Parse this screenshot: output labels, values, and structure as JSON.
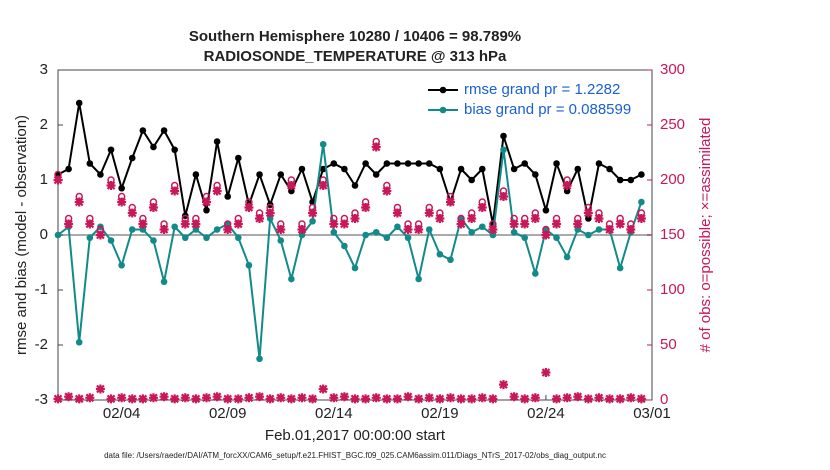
{
  "chart_data": {
    "type": "line",
    "title": "Southern Hemisphere 10280 / 10406 = 98.789%",
    "subtitle": "RADIOSONDE_TEMPERATURE @ 313 hPa",
    "xlabel": "Feb.01,2017 00:00:00 start",
    "ylabel": "rmse and bias (model - observation)",
    "y2label": "# of obs: o=possible; ×=assimilated",
    "footnote": "data file: /Users/raeder/DAI/ATM_forcXX/CAM6_setup/f.e21.FHIST_BGC.f09_025.CAM6assim.011/Diags_NTrS_2017-02/obs_diag_output.nc",
    "x": [
      0,
      0.5,
      1,
      1.5,
      2,
      2.5,
      3,
      3.5,
      4,
      4.5,
      5,
      5.5,
      6,
      6.5,
      7,
      7.5,
      8,
      8.5,
      9,
      9.5,
      10,
      10.5,
      11,
      11.5,
      12,
      12.5,
      13,
      13.5,
      14,
      14.5,
      15,
      15.5,
      16,
      16.5,
      17,
      17.5,
      18,
      18.5,
      19,
      19.5,
      20,
      20.5,
      21,
      21.5,
      22,
      22.5,
      23,
      23.5,
      24,
      24.5,
      25,
      25.5,
      26,
      26.5,
      27,
      27.5
    ],
    "xlim": [
      0,
      28
    ],
    "xticks": [
      {
        "value": 3,
        "label": "02/04"
      },
      {
        "value": 8,
        "label": "02/09"
      },
      {
        "value": 13,
        "label": "02/14"
      },
      {
        "value": 18,
        "label": "02/19"
      },
      {
        "value": 23,
        "label": "02/24"
      },
      {
        "value": 28,
        "label": "03/01"
      }
    ],
    "ylim": [
      -3,
      3
    ],
    "yticks": [
      -3,
      -2,
      -1,
      0,
      1,
      2,
      3
    ],
    "y2lim": [
      0,
      300
    ],
    "y2ticks": [
      0,
      50,
      100,
      150,
      200,
      250,
      300
    ],
    "series": [
      {
        "name": "rmse grand pr = 1.2282",
        "color": "#000000",
        "marker": "dot",
        "values": [
          1.1,
          1.2,
          2.4,
          1.3,
          1.1,
          1.55,
          0.85,
          1.4,
          1.9,
          1.6,
          1.9,
          1.55,
          0.35,
          1.1,
          0.45,
          1.7,
          0.7,
          1.4,
          0.55,
          1.1,
          0.55,
          1.1,
          0.8,
          1.2,
          0.6,
          1.2,
          1.3,
          1.2,
          0.9,
          1.3,
          1.1,
          1.3,
          1.3,
          1.3,
          1.3,
          1.3,
          1.2,
          0.6,
          1.2,
          1.0,
          1.2,
          0.2,
          1.8,
          1.2,
          1.3,
          1.1,
          0.45,
          1.3,
          0.8,
          1.2,
          0.3,
          1.3,
          1.2,
          1.0,
          1.0,
          1.1
        ]
      },
      {
        "name": "bias grand pr = 0.088599",
        "color": "#138a8a",
        "marker": "dot",
        "values": [
          0.0,
          0.15,
          -1.95,
          -0.05,
          0.15,
          -0.1,
          -0.55,
          0.1,
          0.1,
          -0.1,
          -0.85,
          0.15,
          -0.05,
          0.1,
          -0.05,
          0.1,
          0.2,
          -0.05,
          -0.55,
          -2.25,
          0.3,
          -0.1,
          -0.8,
          0.0,
          0.25,
          1.65,
          0.05,
          -0.2,
          -0.6,
          0.0,
          0.05,
          -0.05,
          0.15,
          -0.05,
          -0.8,
          0.1,
          -0.35,
          -0.45,
          0.3,
          0.05,
          0.15,
          0.0,
          1.55,
          0.05,
          -0.05,
          -0.7,
          0.1,
          -0.05,
          -0.4,
          0.1,
          0.0,
          0.1,
          0.1,
          -0.6,
          0.05,
          0.6
        ]
      },
      {
        "color": "#c8185a",
        "axis": "y2",
        "marker": "o",
        "values": [
          205,
          165,
          185,
          165,
          155,
          200,
          185,
          175,
          165,
          180,
          160,
          195,
          165,
          165,
          185,
          195,
          160,
          165,
          180,
          170,
          175,
          160,
          200,
          160,
          175,
          200,
          165,
          165,
          170,
          180,
          235,
          195,
          175,
          160,
          160,
          175,
          170,
          185,
          165,
          170,
          180,
          160,
          190,
          165,
          165,
          170,
          155,
          165,
          200,
          165,
          175,
          170,
          160,
          165,
          160,
          170
        ]
      },
      {
        "color": "#c8185a",
        "axis": "y2",
        "marker": "x",
        "values": [
          200,
          160,
          180,
          160,
          150,
          195,
          180,
          170,
          160,
          175,
          155,
          190,
          160,
          160,
          180,
          190,
          155,
          160,
          175,
          165,
          170,
          155,
          195,
          155,
          170,
          195,
          160,
          160,
          165,
          175,
          230,
          190,
          170,
          155,
          155,
          170,
          165,
          180,
          160,
          165,
          175,
          155,
          185,
          160,
          160,
          165,
          150,
          160,
          195,
          160,
          170,
          165,
          155,
          160,
          155,
          165
        ]
      },
      {
        "color": "#c8185a",
        "axis": "y2",
        "marker": "x",
        "values": [
          1,
          3,
          1,
          2,
          10,
          1,
          2,
          1,
          1,
          2,
          3,
          1,
          2,
          1,
          2,
          3,
          1,
          1,
          2,
          3,
          1,
          2,
          1,
          2,
          1,
          10,
          2,
          3,
          1,
          1,
          2,
          1,
          1,
          3,
          1,
          2,
          1,
          2,
          1,
          1,
          2,
          1,
          14,
          3,
          1,
          2,
          25,
          1,
          2,
          3,
          1,
          2,
          1,
          1,
          2,
          1
        ]
      }
    ],
    "legend": "upper-right"
  }
}
